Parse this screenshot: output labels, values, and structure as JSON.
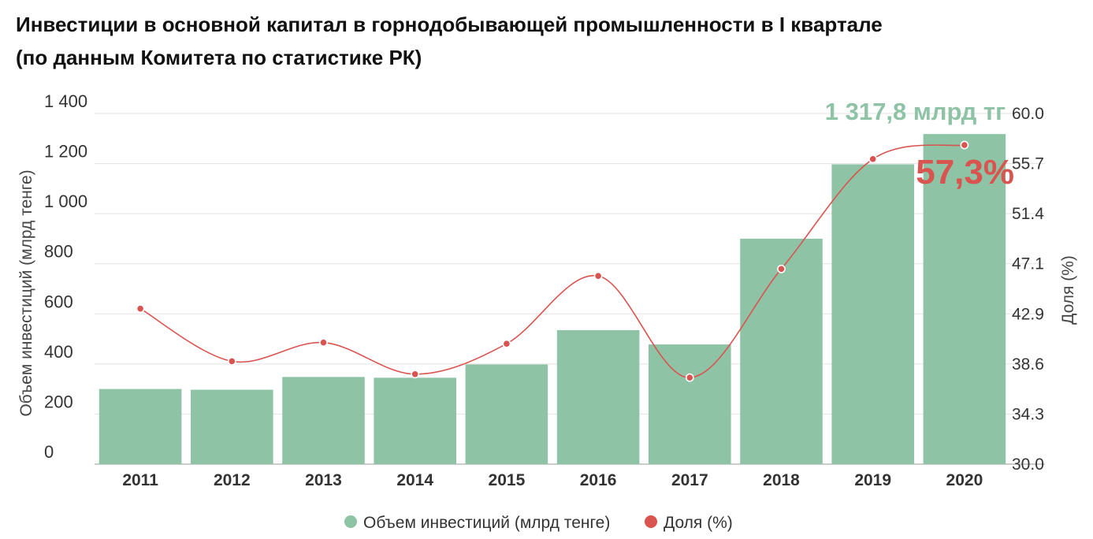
{
  "title": {
    "line1": "Инвестиции в основной капитал в горнодобывающей промышленности в I квартале",
    "line2": "(по данным Комитета по статистике РК)"
  },
  "chart_data": {
    "type": "bar",
    "categories": [
      "2011",
      "2012",
      "2013",
      "2014",
      "2015",
      "2016",
      "2017",
      "2018",
      "2019",
      "2020"
    ],
    "series": [
      {
        "name": "Объем инвестиций (млрд тенге)",
        "type": "bar",
        "axis": "left",
        "color": "#8fc3a6",
        "values": [
          300,
          297,
          348,
          345,
          398,
          535,
          478,
          900,
          1197,
          1317.8
        ]
      },
      {
        "name": "Доля (%)",
        "type": "line",
        "axis": "right",
        "color": "#d9534f",
        "values": [
          43.3,
          38.8,
          40.4,
          37.7,
          40.3,
          46.1,
          37.4,
          46.7,
          56.1,
          57.3
        ]
      }
    ],
    "y_left": {
      "label": "Объем инвестиций (млрд тенге)",
      "min": 0,
      "max": 1400,
      "ticks": [
        0,
        200,
        400,
        600,
        800,
        1000,
        1200,
        1400
      ],
      "tick_labels": [
        "0",
        "200",
        "400",
        "600",
        "800",
        "1 000",
        "1 200",
        "1 400"
      ]
    },
    "y_right": {
      "label": "Доля (%)",
      "min": 30.0,
      "max": 60.0,
      "tick_labels": [
        "30.0",
        "34.3",
        "38.6",
        "42.9",
        "47.1",
        "51.4",
        "55.7",
        "60.0"
      ]
    },
    "annotations": [
      {
        "text": "1 317,8 млрд тг",
        "series": 0,
        "index": 9,
        "color": "#8fc3a6"
      },
      {
        "text": "57,3%",
        "series": 1,
        "index": 9,
        "color": "#d9534f"
      }
    ],
    "grid": true,
    "legend": "bottom"
  }
}
